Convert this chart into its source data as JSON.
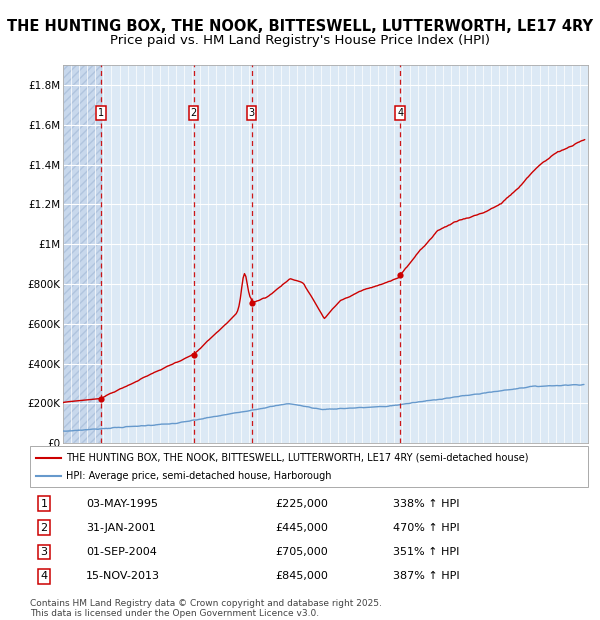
{
  "title": "THE HUNTING BOX, THE NOOK, BITTESWELL, LUTTERWORTH, LE17 4RY",
  "subtitle": "Price paid vs. HM Land Registry's House Price Index (HPI)",
  "ylim": [
    0,
    1900000
  ],
  "yticks": [
    0,
    200000,
    400000,
    600000,
    800000,
    1000000,
    1200000,
    1400000,
    1600000,
    1800000
  ],
  "ytick_labels": [
    "£0",
    "£200K",
    "£400K",
    "£600K",
    "£800K",
    "£1M",
    "£1.2M",
    "£1.4M",
    "£1.6M",
    "£1.8M"
  ],
  "xmin": 1993.0,
  "xmax": 2025.5,
  "plot_bg_color": "#dce9f5",
  "grid_color": "#ffffff",
  "transactions": [
    {
      "num": 1,
      "date": "03-MAY-1995",
      "price": 225000,
      "x": 1995.34,
      "pct": "338%",
      "dir": "↑"
    },
    {
      "num": 2,
      "date": "31-JAN-2001",
      "price": 445000,
      "x": 2001.08,
      "pct": "470%",
      "dir": "↑"
    },
    {
      "num": 3,
      "date": "01-SEP-2004",
      "price": 705000,
      "x": 2004.67,
      "pct": "351%",
      "dir": "↑"
    },
    {
      "num": 4,
      "date": "15-NOV-2013",
      "price": 845000,
      "x": 2013.87,
      "pct": "387%",
      "dir": "↑"
    }
  ],
  "legend_property": "THE HUNTING BOX, THE NOOK, BITTESWELL, LUTTERWORTH, LE17 4RY (semi-detached house)",
  "legend_hpi": "HPI: Average price, semi-detached house, Harborough",
  "footnote": "Contains HM Land Registry data © Crown copyright and database right 2025.\nThis data is licensed under the Open Government Licence v3.0.",
  "property_line_color": "#cc0000",
  "hpi_line_color": "#6699cc",
  "marker_box_color": "#cc0000",
  "title_fontsize": 10.5,
  "subtitle_fontsize": 9.5,
  "axis_fontsize": 7.5,
  "legend_fontsize": 7.0,
  "table_fontsize": 8.0,
  "footnote_fontsize": 6.5
}
